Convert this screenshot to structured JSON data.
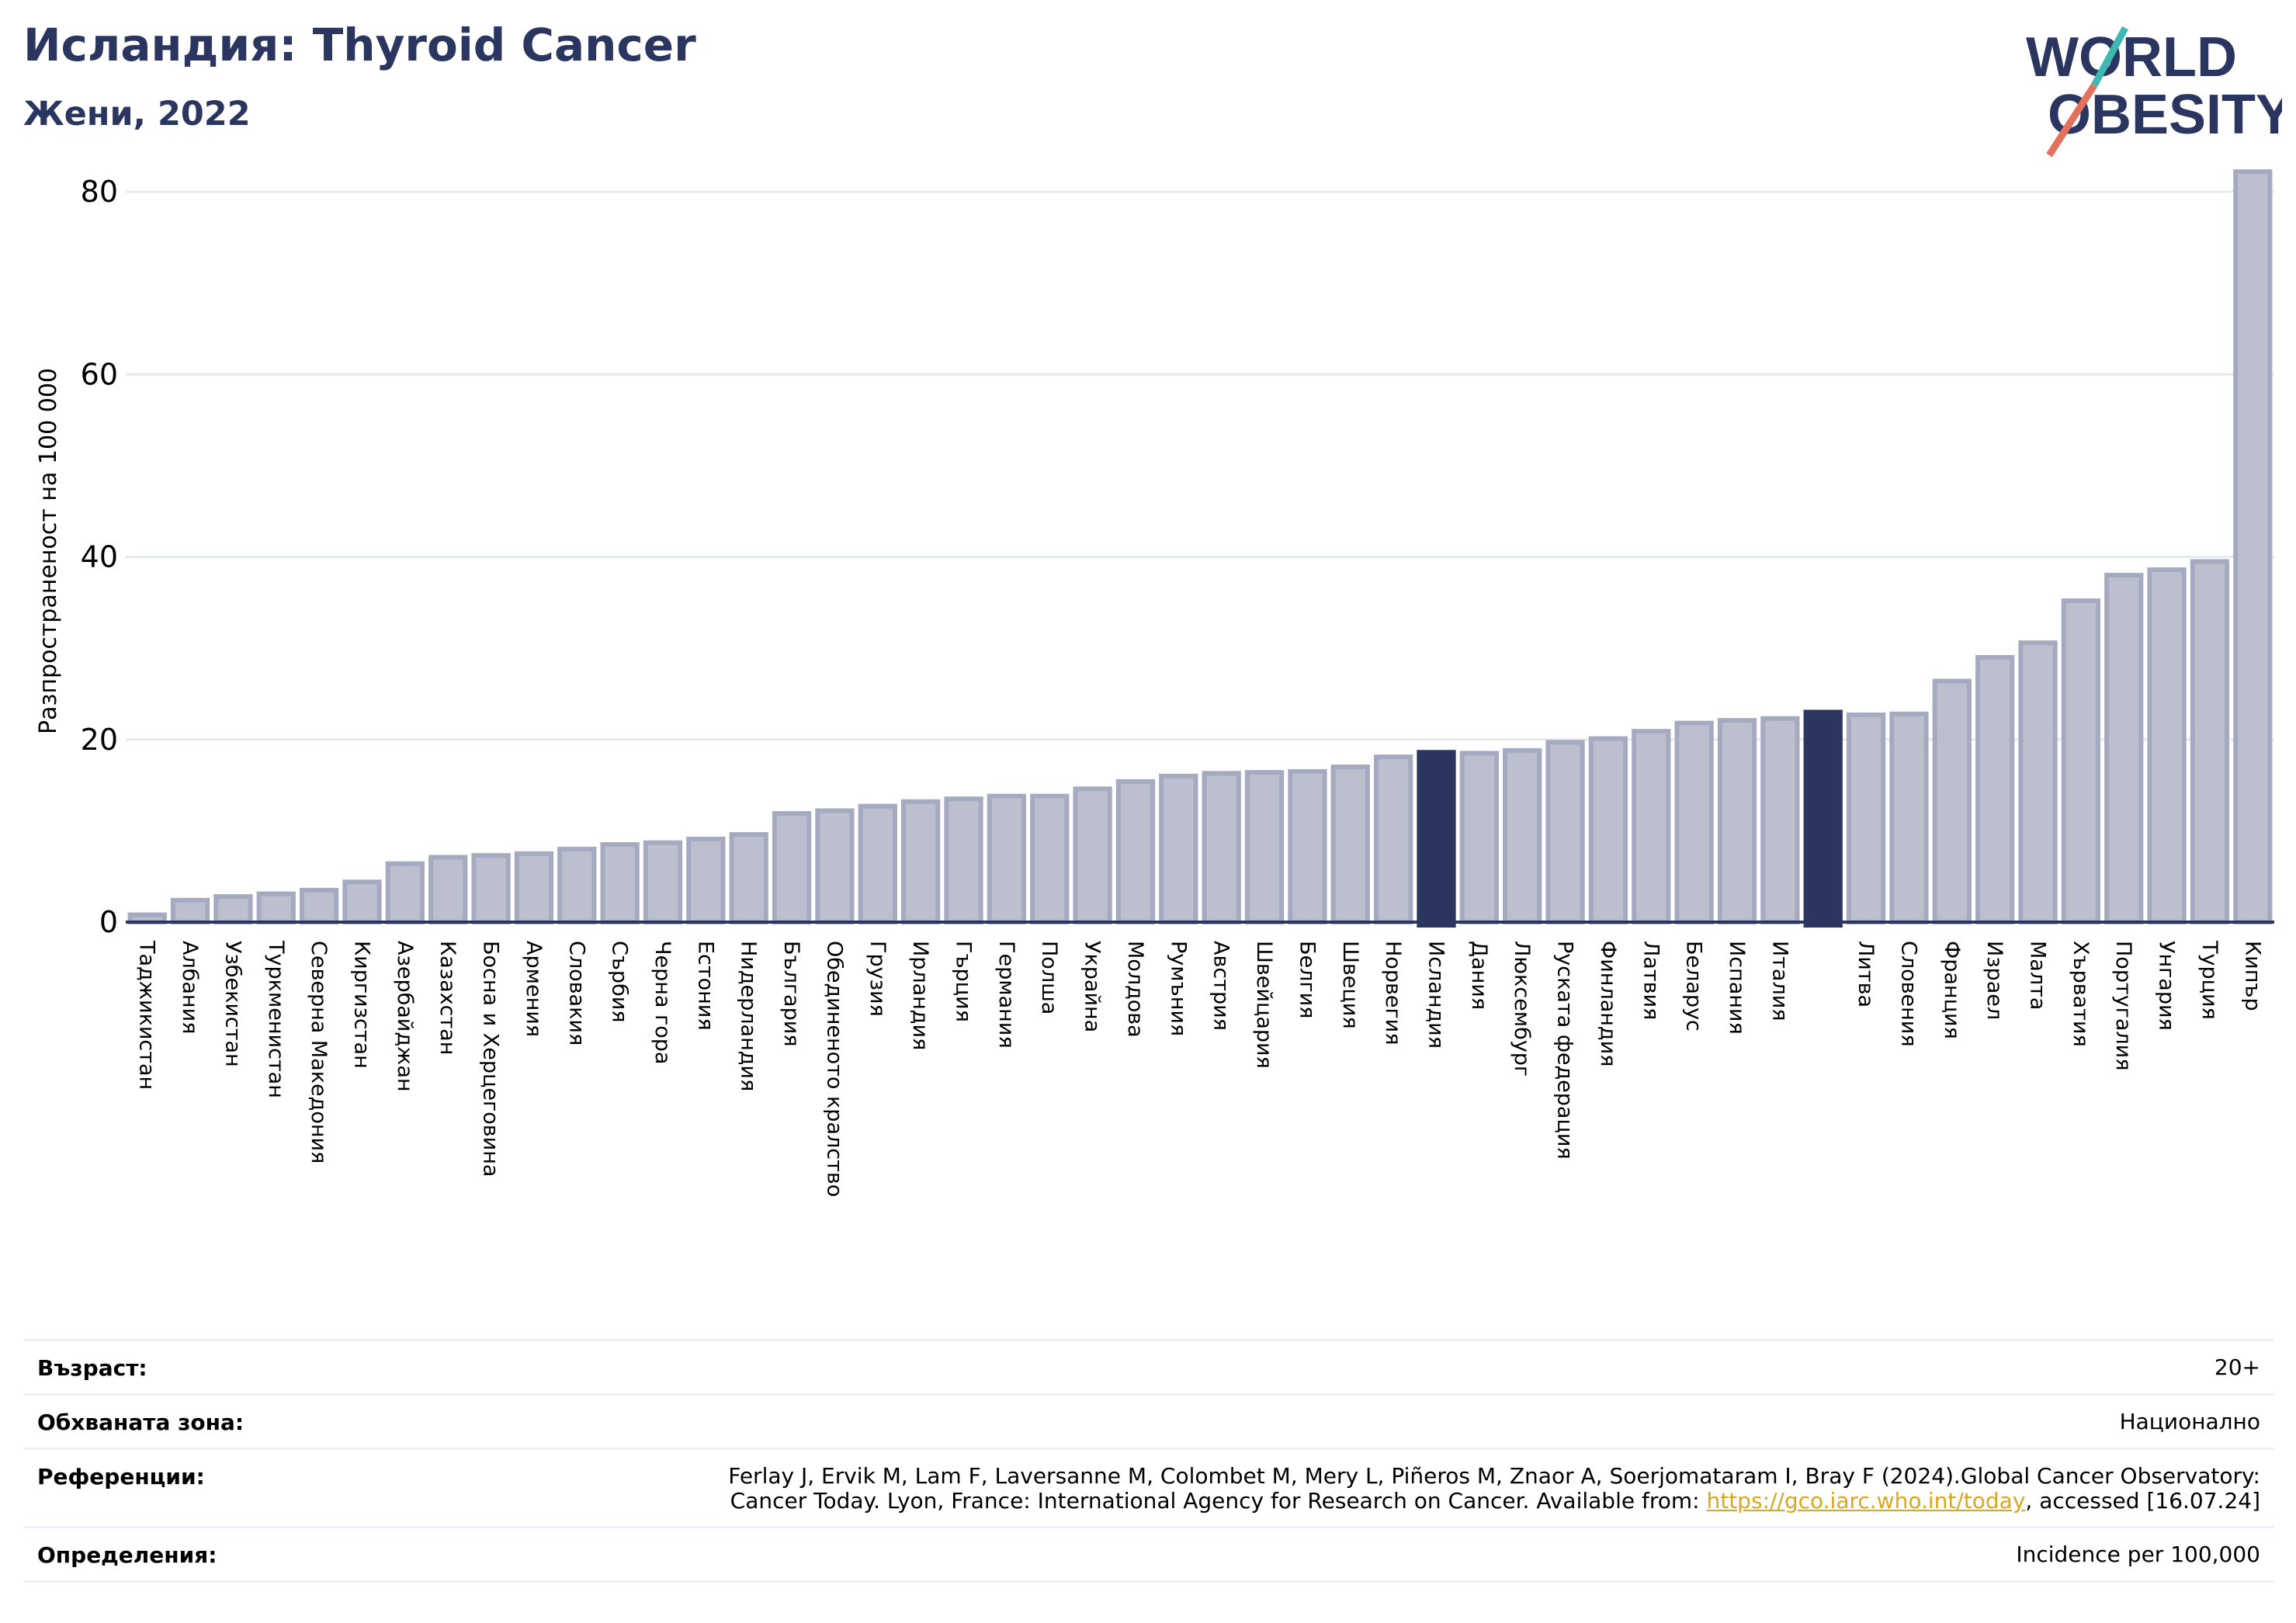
{
  "header": {
    "title": "Исландия: Thyroid Cancer",
    "subtitle": "Жени, 2022",
    "logo_line1": "WORLD",
    "logo_line2": "OBESITY"
  },
  "chart_data": {
    "type": "bar",
    "ylabel": "Разпространеност  на 100 000",
    "ylim": [
      0,
      84
    ],
    "yticks": [
      0,
      20,
      40,
      60,
      80
    ],
    "grid": true,
    "categories": [
      "Таджикистан",
      "Албания",
      "Узбекистан",
      "Туркменистан",
      "Северна Македония",
      "Киргизстан",
      "Азербайджан",
      "Казахстан",
      "Босна и Херцеговина",
      "Армения",
      "Словакия",
      "Сърбия",
      "Черна гора",
      "Естония",
      "Нидерландия",
      "България",
      "Обединеното кралство",
      "Грузия",
      "Ирландия",
      "Гърция",
      "Германия",
      "Полша",
      "Украйна",
      "Молдова",
      "Румъния",
      "Австрия",
      "Швейцария",
      "Белгия",
      "Швеция",
      "Норвегия",
      "Исландия",
      "Дания",
      "Люксембург",
      "Руската федерация",
      "Финландия",
      "Латвия",
      "Беларус",
      "Испания",
      "Италия",
      "",
      "Литва",
      "Словения",
      "Франция",
      "Израел",
      "Малта",
      "Хърватия",
      "Португалия",
      "Унгария",
      "Турция",
      "Кипър"
    ],
    "values": [
      0.8,
      2.4,
      2.8,
      3.1,
      3.5,
      4.4,
      6.4,
      7.1,
      7.3,
      7.5,
      8.0,
      8.5,
      8.7,
      9.1,
      9.6,
      11.9,
      12.2,
      12.7,
      13.2,
      13.5,
      13.8,
      13.8,
      14.6,
      15.4,
      16.0,
      16.3,
      16.4,
      16.5,
      17.0,
      18.1,
      18.6,
      18.5,
      18.8,
      19.7,
      20.1,
      20.9,
      21.8,
      22.1,
      22.3,
      23.0,
      22.7,
      22.8,
      26.4,
      29.0,
      30.6,
      35.2,
      38.0,
      38.6,
      39.5,
      82.2
    ],
    "highlight": [
      30,
      39
    ],
    "colors": {
      "bar": "#bcc0ce",
      "bar_edge": "#a5aac0",
      "highlight": "#2b3660",
      "grid": "#e6e9ef",
      "axis": "#2b3660"
    }
  },
  "info": {
    "age_label": "Възраст:",
    "age_value": "20+",
    "area_label": "Обхваната зона:",
    "area_value": "Национално",
    "ref_label": "Референции:",
    "ref_text_1": "Ferlay J, Ervik M, Lam F, Laversanne M, Colombet M, Mery L, Piñeros M, Znaor A, Soerjomataram I, Bray F (2024).Global Cancer Observatory:",
    "ref_text_2": "Cancer Today. Lyon, France: International Agency for Research on Cancer. Available from: ",
    "ref_link": "https://gco.iarc.who.int/today",
    "ref_text_3": ", accessed [16.07.24]",
    "def_label": "Определения:",
    "def_value": "Incidence per 100,000"
  }
}
